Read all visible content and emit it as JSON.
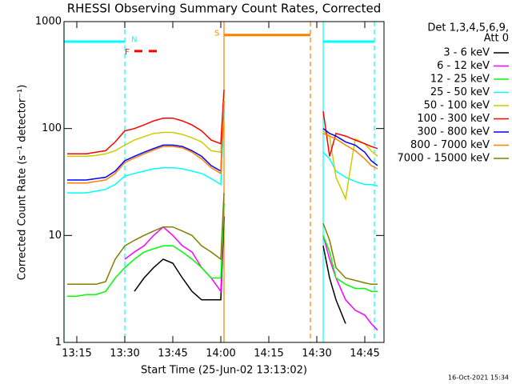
{
  "chart_data": {
    "type": "line",
    "title": "RHESSI Observing Summary Count Rates, Corrected",
    "xlabel": "Start Time (25-Jun-02 13:13:02)",
    "ylabel": "Corrected Count Rate (s⁻¹ detector⁻¹)",
    "legend_header": [
      "Det 1,3,4,5,6,9,",
      "Att 0"
    ],
    "footer": "16-Oct-2021 15:34",
    "log_y": true,
    "xlim": [
      "13:11",
      "14:51"
    ],
    "xticks": [
      "13:15",
      "13:30",
      "13:45",
      "14:00",
      "14:15",
      "14:30",
      "14:45"
    ],
    "ylim": [
      1,
      1000
    ],
    "yticks": [
      1,
      10,
      100,
      1000
    ],
    "x": [
      "13:12",
      "13:15",
      "13:18",
      "13:21",
      "13:24",
      "13:27",
      "13:30",
      "13:33",
      "13:36",
      "13:39",
      "13:42",
      "13:45",
      "13:48",
      "13:51",
      "13:54",
      "13:57",
      "14:00",
      "14:01",
      "14:15",
      "14:32",
      "14:34",
      "14:36",
      "14:39",
      "14:42",
      "14:45",
      "14:47",
      "14:49"
    ],
    "series": [
      {
        "name": "3 - 6 keV",
        "color": "#000000",
        "values": [
          null,
          null,
          null,
          null,
          null,
          null,
          null,
          3,
          4,
          5,
          6,
          5.5,
          4,
          3,
          2.5,
          2.5,
          2.5,
          15,
          null,
          8,
          4,
          2.5,
          1.5,
          null,
          null,
          null,
          null
        ]
      },
      {
        "name": "6 - 12 keV",
        "color": "#ff00ff",
        "values": [
          null,
          null,
          null,
          null,
          null,
          null,
          6,
          7,
          8,
          10,
          12,
          10,
          8,
          7,
          5,
          4,
          3,
          20,
          null,
          10,
          6,
          4,
          2.5,
          2,
          1.8,
          1.5,
          1.3
        ]
      },
      {
        "name": "12 - 25 keV",
        "color": "#00ff00",
        "values": [
          2.7,
          2.7,
          2.8,
          2.8,
          3,
          4,
          5,
          6,
          7,
          7.5,
          8,
          8,
          7,
          6,
          5,
          4,
          4,
          20,
          null,
          10,
          7,
          4,
          3.5,
          3.2,
          3.2,
          3,
          3
        ]
      },
      {
        "name": "25 - 50 keV",
        "color": "#00ffff",
        "values": [
          25,
          25,
          25,
          26,
          27,
          30,
          36,
          38,
          40,
          42,
          43,
          43,
          42,
          40,
          38,
          34,
          30,
          150,
          null,
          60,
          52,
          40,
          35,
          32,
          30,
          30,
          29
        ]
      },
      {
        "name": "50 - 100 keV",
        "color": "#cccc00",
        "values": [
          55,
          55,
          55,
          56,
          58,
          62,
          70,
          78,
          84,
          90,
          92,
          92,
          88,
          82,
          75,
          62,
          60,
          200,
          null,
          95,
          85,
          35,
          22,
          80,
          72,
          62,
          55
        ]
      },
      {
        "name": "100 - 300 keV",
        "color": "#ff0000",
        "values": [
          58,
          58,
          58,
          60,
          62,
          75,
          95,
          100,
          108,
          118,
          125,
          125,
          118,
          108,
          95,
          78,
          72,
          230,
          null,
          145,
          55,
          90,
          85,
          78,
          72,
          68,
          65
        ]
      },
      {
        "name": "300 - 800 keV",
        "color": "#0000ff",
        "values": [
          33,
          33,
          33,
          34,
          35,
          40,
          50,
          55,
          60,
          65,
          70,
          70,
          68,
          62,
          55,
          45,
          40,
          180,
          null,
          100,
          90,
          85,
          75,
          70,
          60,
          50,
          45
        ]
      },
      {
        "name": "800 - 7000 keV",
        "color": "#ff8000",
        "values": [
          31,
          31,
          31,
          32,
          33,
          38,
          48,
          53,
          58,
          63,
          68,
          68,
          66,
          60,
          52,
          43,
          38,
          180,
          null,
          90,
          85,
          80,
          70,
          62,
          52,
          45,
          42
        ]
      },
      {
        "name": "7000 - 15000 keV",
        "color": "#808000",
        "values": [
          3.5,
          3.5,
          3.5,
          3.5,
          3.7,
          6,
          8,
          9,
          10,
          11,
          12,
          12,
          11,
          10,
          8,
          7,
          6,
          25,
          null,
          13,
          9,
          5,
          4,
          3.8,
          3.6,
          3.5,
          3.5
        ]
      }
    ],
    "markers": [
      {
        "x": "13:11",
        "color": "#00ffff",
        "dashed": false
      },
      {
        "x": "13:30",
        "color": "#00ffff",
        "dashed": true
      },
      {
        "x": "14:01",
        "color": "#ff8000",
        "dashed": false
      },
      {
        "x": "14:28",
        "color": "#ff8000",
        "dashed": true
      },
      {
        "x": "14:32",
        "color": "#00ffff",
        "dashed": false
      },
      {
        "x": "14:48",
        "color": "#00ffff",
        "dashed": true
      }
    ],
    "segments": [
      {
        "x": [
          "13:11",
          "13:30"
        ],
        "y": 650,
        "color": "#00ffff",
        "dashed": false
      },
      {
        "x": [
          "14:32",
          "14:48"
        ],
        "y": 650,
        "color": "#00ffff",
        "dashed": false
      },
      {
        "x": [
          "14:01",
          "14:28"
        ],
        "y": 750,
        "color": "#ff8000",
        "dashed": false
      },
      {
        "x": [
          "13:33",
          "13:41"
        ],
        "y": 530,
        "color": "#ff0000",
        "dashed": true
      }
    ],
    "annotations": [
      {
        "text": "N",
        "x": "13:32",
        "y": 680,
        "color": "#00ffff"
      },
      {
        "text": "F",
        "x": "13:30",
        "y": 520,
        "color": "#ff0000"
      },
      {
        "text": "S",
        "x": "13:58",
        "y": 780,
        "color": "#ff8000"
      }
    ]
  }
}
